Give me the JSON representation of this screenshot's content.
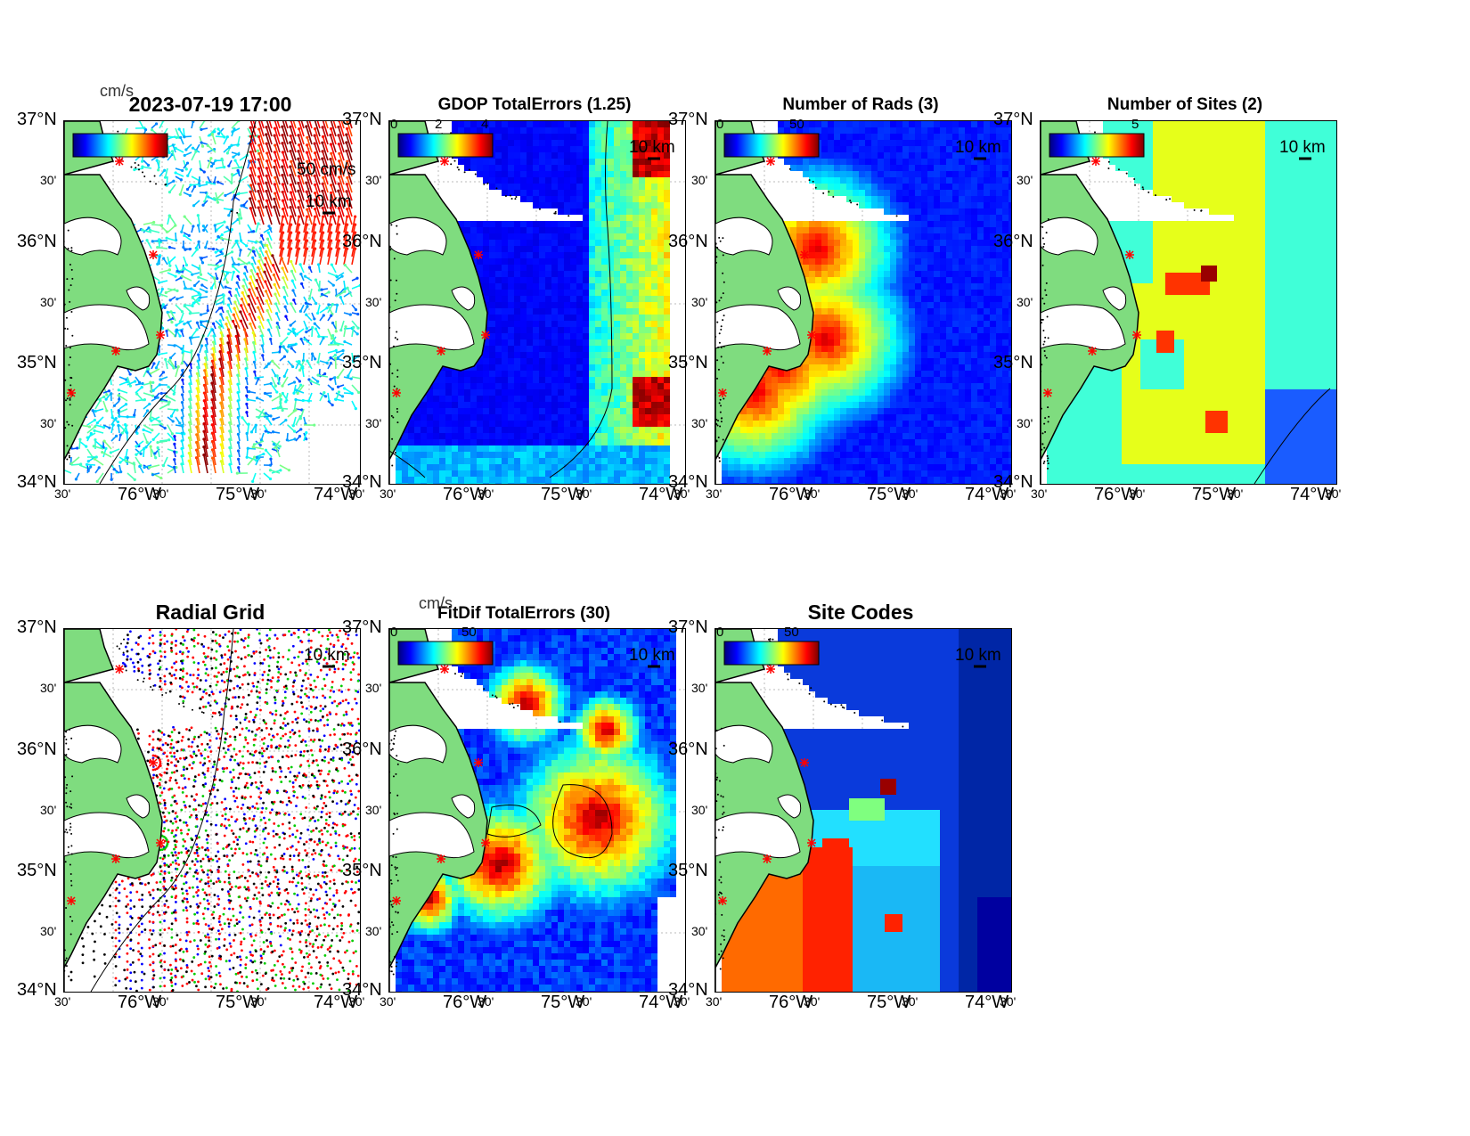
{
  "panels": {
    "currents": {
      "title": "2023-07-19 17:00",
      "units": "cm/s",
      "ref_vector": "50 cm/s",
      "scale": "10 km",
      "contour": "100"
    },
    "gdop": {
      "title": "GDOP TotalErrors (1.25)",
      "ticks": [
        "0",
        "2",
        "4"
      ],
      "scale": "10 km",
      "contour": "1.25"
    },
    "rads": {
      "title": "Number of Rads (3)",
      "ticks": [
        "0",
        "50"
      ],
      "scale": "10 km"
    },
    "sites": {
      "title": "Number of Sites (2)",
      "ticks": [
        "5"
      ],
      "scale": "10 km",
      "contour": "2"
    },
    "radial": {
      "title": "Radial Grid",
      "scale": "10 km",
      "contour": "100"
    },
    "fitdif": {
      "title": "FitDif TotalErrors (30)",
      "units": "cm/s",
      "ticks": [
        "0",
        "50"
      ],
      "scale": "10 km",
      "contour": "30"
    },
    "codes": {
      "title": "Site Codes",
      "ticks": [
        "0",
        "50"
      ],
      "scale": "10 km"
    }
  },
  "axes": {
    "lat_main": [
      "37°N",
      "36°N",
      "35°N",
      "34°N"
    ],
    "lat_minor": "30'",
    "lon_main": [
      "76°W",
      "75°W",
      "74°W"
    ],
    "lon_minor": "30'"
  },
  "colors": {
    "land": "#7fdc7f",
    "coast": "#000000",
    "site_marker": "#ff0000",
    "radial_sites": [
      "#0000ff",
      "#ff0000",
      "#00cc00",
      "#ff0000",
      "#000000"
    ]
  }
}
